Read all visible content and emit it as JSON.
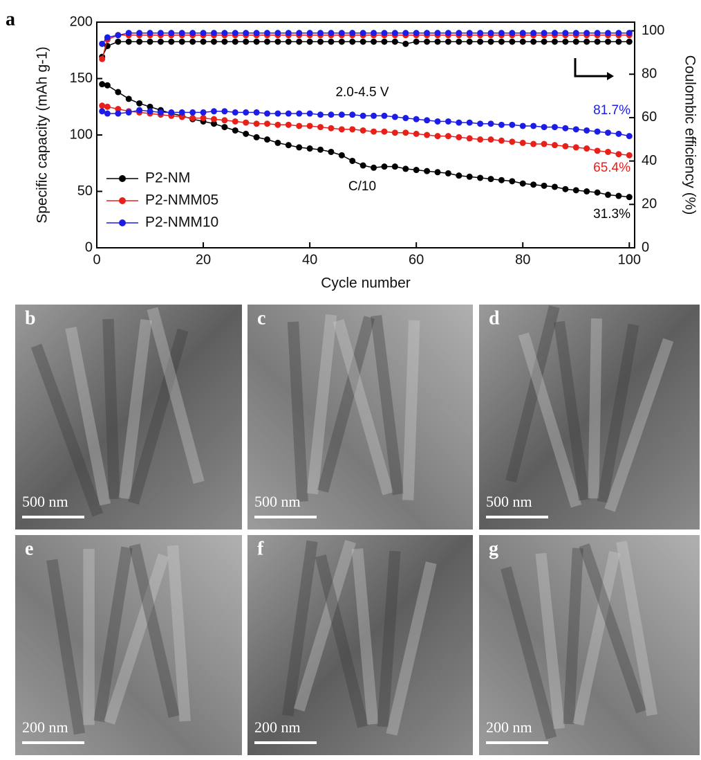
{
  "chart_data": {
    "type": "line",
    "panel_label": "a",
    "xlabel": "Cycle number",
    "ylabel": "Specific capacity (mAh g-1)",
    "y2label": "Coulombic efficiency (%)",
    "xlim": [
      0,
      101
    ],
    "ylim": [
      0,
      200
    ],
    "y2lim": [
      0,
      104
    ],
    "xticks": [
      0,
      20,
      40,
      60,
      80,
      100
    ],
    "yticks": [
      0,
      50,
      100,
      150,
      200
    ],
    "y2ticks": [
      0,
      20,
      40,
      60,
      80,
      100
    ],
    "legend": "lower left",
    "x": [
      1,
      2,
      4,
      6,
      8,
      10,
      12,
      14,
      16,
      18,
      20,
      22,
      24,
      26,
      28,
      30,
      32,
      34,
      36,
      38,
      40,
      42,
      44,
      46,
      48,
      50,
      52,
      54,
      56,
      58,
      60,
      62,
      64,
      66,
      68,
      70,
      72,
      74,
      76,
      78,
      80,
      82,
      84,
      86,
      88,
      90,
      92,
      94,
      96,
      98,
      100
    ],
    "series": [
      {
        "name": "P2-NM",
        "color": "#000000",
        "values": [
          145,
          144,
          138,
          132,
          128,
          125,
          122,
          119,
          117,
          114,
          112,
          110,
          107,
          104,
          101,
          98,
          96,
          93,
          91,
          89,
          88,
          87,
          85,
          82,
          77,
          73,
          71,
          72,
          72,
          70,
          69,
          68,
          67,
          66,
          64,
          63,
          62,
          61,
          60,
          59,
          57,
          56,
          55,
          54,
          52,
          51,
          50,
          49,
          47,
          46,
          45
        ]
      },
      {
        "name": "P2-NMM05",
        "color": "#e8201a",
        "values": [
          126,
          125,
          123,
          121,
          120,
          119,
          118,
          117,
          116,
          115,
          115,
          114,
          113,
          112,
          111,
          110,
          110,
          109,
          109,
          108,
          108,
          107,
          106,
          105,
          105,
          104,
          103,
          103,
          102,
          102,
          101,
          100,
          99,
          99,
          98,
          97,
          96,
          96,
          95,
          94,
          93,
          92,
          92,
          91,
          90,
          89,
          88,
          86,
          85,
          83,
          82
        ]
      },
      {
        "name": "P2-NMM10",
        "color": "#1c1ce6",
        "values": [
          121,
          119,
          119,
          120,
          122,
          121,
          120,
          120,
          120,
          120,
          120,
          121,
          121,
          120,
          120,
          120,
          119,
          119,
          119,
          119,
          119,
          118,
          118,
          118,
          118,
          117,
          117,
          117,
          116,
          115,
          114,
          113,
          112,
          112,
          111,
          111,
          110,
          110,
          109,
          109,
          108,
          108,
          107,
          107,
          106,
          105,
          104,
          103,
          102,
          101,
          99
        ]
      },
      {
        "color": "#000000",
        "axis": "y2",
        "values": [
          88,
          93,
          95,
          95,
          95,
          95,
          95,
          95,
          95,
          95,
          95,
          95,
          95,
          95,
          95,
          95,
          95,
          95,
          95,
          95,
          95,
          95,
          95,
          95,
          95,
          95,
          95,
          95,
          95,
          94,
          95,
          95,
          95,
          95,
          95,
          95,
          95,
          95,
          95,
          95,
          95,
          95,
          95,
          95,
          95,
          95,
          95,
          95,
          95,
          95,
          95
        ]
      },
      {
        "color": "#e8201a",
        "axis": "y2",
        "values": [
          87,
          96,
          98,
          98,
          98,
          98,
          98,
          98,
          98,
          98,
          98,
          98,
          98,
          98,
          98,
          98,
          98,
          98,
          98,
          98,
          98,
          98,
          98,
          98,
          98,
          98,
          98,
          98,
          98,
          98,
          98,
          98,
          98,
          98,
          98,
          98,
          98,
          98,
          98,
          98,
          98,
          98,
          98,
          98,
          98,
          98,
          98,
          98,
          98,
          98,
          98
        ]
      },
      {
        "color": "#1c1ce6",
        "axis": "y2",
        "values": [
          94,
          97,
          98,
          99,
          99,
          99,
          99,
          99,
          99,
          99,
          99,
          99,
          99,
          99,
          99,
          99,
          99,
          99,
          99,
          99,
          99,
          99,
          99,
          99,
          99,
          99,
          99,
          99,
          99,
          99,
          99,
          99,
          99,
          99,
          99,
          99,
          99,
          99,
          99,
          99,
          99,
          99,
          99,
          99,
          99,
          99,
          99,
          99,
          99,
          99,
          99
        ]
      }
    ],
    "annotations": [
      {
        "text": "2.0-4.5 V",
        "color": "#000000"
      },
      {
        "text": "C/10",
        "color": "#000000"
      },
      {
        "text": "81.7%",
        "color": "#1c1ce6"
      },
      {
        "text": "65.4%",
        "color": "#e8201a"
      },
      {
        "text": "31.3%",
        "color": "#000000"
      }
    ]
  },
  "panels": [
    {
      "label": "b",
      "scale_bar": "500 nm"
    },
    {
      "label": "c",
      "scale_bar": "500 nm"
    },
    {
      "label": "d",
      "scale_bar": "500 nm"
    },
    {
      "label": "e",
      "scale_bar": "200 nm"
    },
    {
      "label": "f",
      "scale_bar": "200 nm"
    },
    {
      "label": "g",
      "scale_bar": "200 nm"
    }
  ]
}
